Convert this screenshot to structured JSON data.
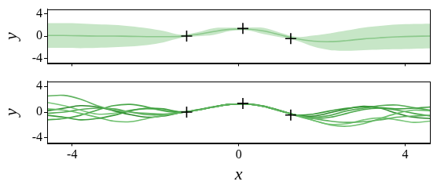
{
  "chart_data": [
    {
      "type": "line",
      "x": [
        -4.6,
        -4.2,
        -3.8,
        -3.4,
        -3.0,
        -2.6,
        -2.2,
        -1.8,
        -1.4,
        -1.0,
        -0.6,
        -0.2,
        0.2,
        0.6,
        1.0,
        1.4,
        1.8,
        2.2,
        2.6,
        3.0,
        3.4,
        3.8,
        4.2,
        4.6
      ],
      "band": {
        "color": "#b9e0b9cc",
        "upper": [
          2.3,
          2.3,
          2.25,
          2.1,
          2.0,
          1.75,
          1.4,
          0.9,
          0.25,
          0.65,
          1.4,
          1.5,
          1.5,
          1.45,
          0.6,
          -0.15,
          0.1,
          0.5,
          1.0,
          1.5,
          1.8,
          2.05,
          2.15,
          2.2
        ],
        "lower": [
          -2.1,
          -2.1,
          -2.15,
          -2.1,
          -2.0,
          -1.85,
          -1.6,
          -1.1,
          -0.35,
          -0.05,
          0.2,
          0.9,
          1.0,
          0.35,
          -0.2,
          -0.85,
          -1.9,
          -2.5,
          -2.6,
          -2.5,
          -2.4,
          -2.35,
          -2.25,
          -2.2
        ]
      },
      "series": [
        {
          "color": "#8cc98c",
          "values": [
            0.1,
            0.1,
            0.05,
            0.0,
            0.0,
            -0.05,
            -0.1,
            -0.1,
            -0.05,
            0.3,
            0.8,
            1.2,
            1.25,
            0.9,
            0.2,
            -0.5,
            -0.9,
            -1.0,
            -0.8,
            -0.5,
            -0.3,
            -0.15,
            -0.05,
            0.0
          ]
        },
        {
          "type": "scatter",
          "marker": "plus",
          "color": "#000000",
          "x": [
            -1.25,
            0.1,
            1.25
          ],
          "values": [
            0.0,
            1.35,
            -0.45
          ]
        }
      ],
      "y_label": "y",
      "xlim": [
        -4.6,
        4.6
      ],
      "xticks": [
        -4,
        0,
        4
      ],
      "ylim": [
        -4.8,
        4.8
      ],
      "yticks": [
        -4,
        0,
        4
      ],
      "grid": false,
      "tick_labels": "y"
    },
    {
      "type": "line",
      "x": [
        -4.6,
        -4.2,
        -3.8,
        -3.4,
        -3.0,
        -2.6,
        -2.2,
        -1.8,
        -1.4,
        -1.0,
        -0.6,
        -0.2,
        0.2,
        0.6,
        1.0,
        1.4,
        1.8,
        2.2,
        2.6,
        3.0,
        3.4,
        3.8,
        4.2,
        4.6
      ],
      "series": [
        {
          "color": "#5fb35f",
          "values": [
            2.5,
            2.6,
            2.0,
            1.0,
            0.3,
            0.0,
            -0.2,
            -0.3,
            -0.1,
            0.3,
            0.8,
            1.2,
            1.25,
            0.9,
            0.2,
            -0.5,
            -1.0,
            -1.4,
            -1.6,
            -1.5,
            -1.2,
            -0.8,
            -0.6,
            -0.5
          ]
        },
        {
          "color": "#3d9e3d",
          "values": [
            -0.5,
            -0.8,
            -1.2,
            -1.0,
            -0.5,
            0.2,
            0.6,
            0.5,
            0.05,
            0.35,
            0.85,
            1.2,
            1.3,
            0.95,
            0.25,
            -0.45,
            -0.3,
            0.2,
            0.6,
            0.8,
            0.7,
            0.5,
            0.6,
            0.8
          ]
        },
        {
          "color": "#6cbf6c",
          "values": [
            0.5,
            0.3,
            -0.2,
            -0.8,
            -1.4,
            -1.5,
            -1.0,
            -0.5,
            -0.1,
            0.3,
            0.8,
            1.2,
            1.25,
            0.9,
            0.2,
            -0.6,
            -1.3,
            -2.0,
            -2.2,
            -1.8,
            -1.0,
            -0.2,
            0.3,
            0.2
          ]
        },
        {
          "color": "#4aa84a",
          "values": [
            -1.2,
            -1.0,
            -0.5,
            0.3,
            1.0,
            1.2,
            0.8,
            0.2,
            -0.05,
            0.3,
            0.8,
            1.2,
            1.25,
            0.85,
            0.15,
            -0.55,
            -1.0,
            -0.8,
            -0.2,
            0.4,
            0.6,
            0.3,
            -0.2,
            -0.6
          ]
        },
        {
          "color": "#2e8b2e",
          "values": [
            0.2,
            0.6,
            1.0,
            0.8,
            0.2,
            -0.4,
            -0.8,
            -0.6,
            -0.1,
            0.3,
            0.8,
            1.2,
            1.25,
            0.9,
            0.2,
            -0.5,
            -0.6,
            -0.1,
            0.5,
            0.9,
            0.6,
            -0.2,
            -0.8,
            -1.0
          ]
        },
        {
          "color": "#79c679",
          "values": [
            1.5,
            1.0,
            0.3,
            -0.3,
            -0.2,
            0.3,
            0.5,
            0.3,
            0.0,
            0.3,
            0.8,
            1.2,
            1.25,
            0.9,
            0.2,
            -0.5,
            -1.3,
            -1.9,
            -1.8,
            -1.2,
            -0.9,
            -1.2,
            -1.6,
            -1.4
          ]
        },
        {
          "color": "#55ad55",
          "values": [
            -0.2,
            0.0,
            0.4,
            0.6,
            0.5,
            0.0,
            -0.4,
            -0.4,
            -0.1,
            0.3,
            0.8,
            1.2,
            1.25,
            0.9,
            0.2,
            -0.5,
            -0.8,
            -0.5,
            0.2,
            0.6,
            1.0,
            1.1,
            0.7,
            0.3
          ]
        },
        {
          "type": "scatter",
          "marker": "plus",
          "color": "#000000",
          "x": [
            -1.25,
            0.1,
            1.25
          ],
          "values": [
            0.0,
            1.35,
            -0.45
          ]
        }
      ],
      "x_label": "x",
      "y_label": "y",
      "xlim": [
        -4.6,
        4.6
      ],
      "xticks": [
        -4,
        0,
        4
      ],
      "ylim": [
        -4.8,
        4.8
      ],
      "yticks": [
        -4,
        0,
        4
      ],
      "grid": false
    }
  ]
}
